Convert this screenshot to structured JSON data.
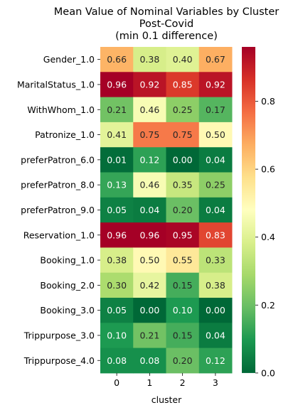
{
  "chart_data": {
    "type": "heatmap",
    "title_lines": [
      "Mean Value of Nominal Variables by Cluster",
      "Post-Covid",
      "(min 0.1 difference)"
    ],
    "xlabel": "cluster",
    "ylabel": "",
    "x_categories": [
      "0",
      "1",
      "2",
      "3"
    ],
    "y_categories": [
      "Gender_1.0",
      "MaritalStatus_1.0",
      "WithWhom_1.0",
      "Patronize_1.0",
      "preferPatron_6.0",
      "preferPatron_8.0",
      "preferPatron_9.0",
      "Reservation_1.0",
      "Booking_1.0",
      "Booking_2.0",
      "Booking_3.0",
      "Trippurpose_3.0",
      "Trippurpose_4.0"
    ],
    "values": [
      [
        0.66,
        0.38,
        0.4,
        0.67
      ],
      [
        0.96,
        0.92,
        0.85,
        0.92
      ],
      [
        0.21,
        0.46,
        0.25,
        0.17
      ],
      [
        0.41,
        0.75,
        0.75,
        0.5
      ],
      [
        0.01,
        0.12,
        0.0,
        0.04
      ],
      [
        0.13,
        0.46,
        0.35,
        0.25
      ],
      [
        0.05,
        0.04,
        0.2,
        0.04
      ],
      [
        0.96,
        0.96,
        0.95,
        0.83
      ],
      [
        0.38,
        0.5,
        0.55,
        0.33
      ],
      [
        0.3,
        0.42,
        0.15,
        0.38
      ],
      [
        0.05,
        0.0,
        0.1,
        0.0
      ],
      [
        0.1,
        0.21,
        0.15,
        0.04
      ],
      [
        0.08,
        0.08,
        0.2,
        0.12
      ]
    ],
    "colormap": "RdYlGn_r",
    "colormap_stops": [
      "#006837",
      "#1a9850",
      "#66bd63",
      "#a6d96a",
      "#d9ef8b",
      "#ffffbf",
      "#fee08b",
      "#fdae61",
      "#f46d43",
      "#d73027",
      "#a50026"
    ],
    "vmin": 0.0,
    "vmax": 0.96,
    "colorbar_ticks": [
      "0.0",
      "0.2",
      "0.4",
      "0.6",
      "0.8"
    ],
    "annotation_format": "2 decimals"
  }
}
